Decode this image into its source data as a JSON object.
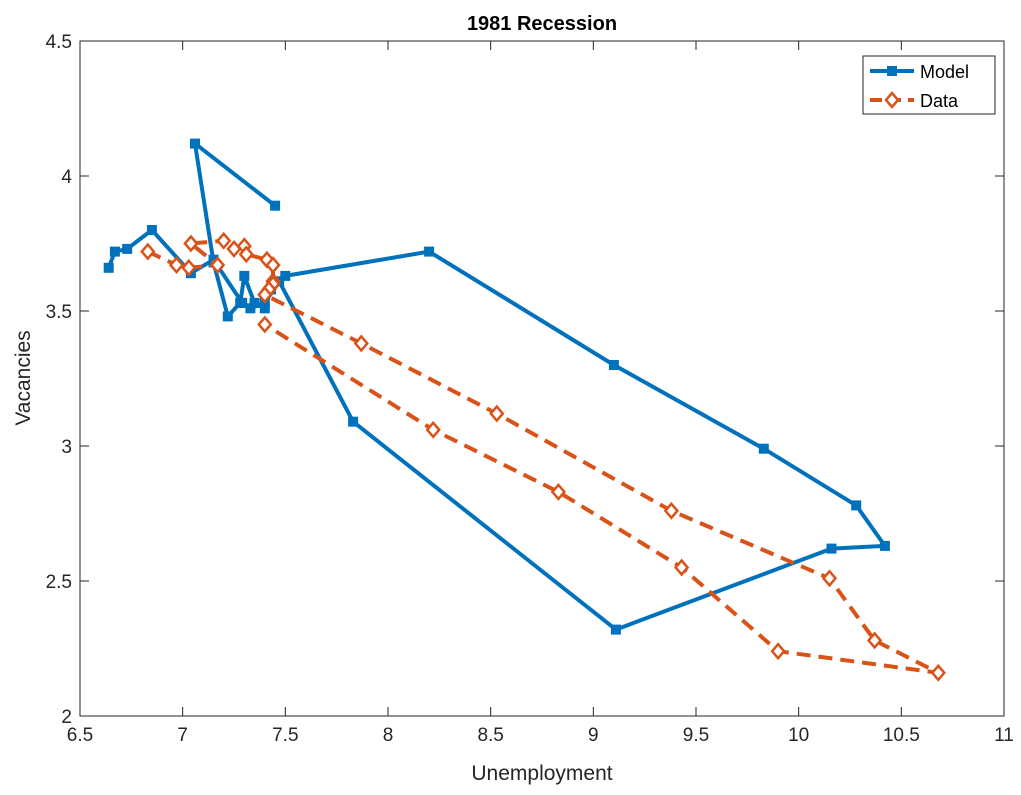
{
  "chart_data": {
    "type": "line",
    "title": "1981 Recession",
    "xlabel": "Unemployment",
    "ylabel": "Vacancies",
    "xlim": [
      6.5,
      11
    ],
    "ylim": [
      2,
      4.5
    ],
    "xticks": [
      6.5,
      7,
      7.5,
      8,
      8.5,
      9,
      9.5,
      10,
      10.5,
      11
    ],
    "yticks": [
      2,
      2.5,
      3,
      3.5,
      4,
      4.5
    ],
    "xtick_labels": [
      "6.5",
      "7",
      "7.5",
      "8",
      "8.5",
      "9",
      "9.5",
      "10",
      "10.5",
      "11"
    ],
    "ytick_labels": [
      "2",
      "2.5",
      "3",
      "3.5",
      "4",
      "4.5"
    ],
    "grid": false,
    "legend_position": "top-right",
    "series": [
      {
        "name": "Model",
        "color": "#0072BD",
        "line_style": "solid",
        "marker": "square",
        "points": [
          [
            7.45,
            3.89
          ],
          [
            7.06,
            4.12
          ],
          [
            7.15,
            3.68
          ],
          [
            7.22,
            3.48
          ],
          [
            7.28,
            3.53
          ],
          [
            7.3,
            3.63
          ],
          [
            7.35,
            3.53
          ],
          [
            7.4,
            3.51
          ],
          [
            7.43,
            3.58
          ],
          [
            7.5,
            3.63
          ],
          [
            8.2,
            3.72
          ],
          [
            9.1,
            3.3
          ],
          [
            9.83,
            2.99
          ],
          [
            10.28,
            2.78
          ],
          [
            10.42,
            2.63
          ],
          [
            10.16,
            2.62
          ],
          [
            9.11,
            2.32
          ],
          [
            7.83,
            3.09
          ],
          [
            7.47,
            3.61
          ],
          [
            7.4,
            3.53
          ],
          [
            7.33,
            3.51
          ],
          [
            7.29,
            3.53
          ],
          [
            7.15,
            3.69
          ],
          [
            7.04,
            3.64
          ],
          [
            6.85,
            3.8
          ],
          [
            6.73,
            3.73
          ],
          [
            6.67,
            3.72
          ],
          [
            6.64,
            3.66
          ]
        ]
      },
      {
        "name": "Data",
        "color": "#D95319",
        "line_style": "dashed",
        "marker": "diamond",
        "points": [
          [
            6.83,
            3.72
          ],
          [
            6.97,
            3.67
          ],
          [
            7.03,
            3.66
          ],
          [
            7.17,
            3.67
          ],
          [
            7.04,
            3.75
          ],
          [
            7.2,
            3.76
          ],
          [
            7.25,
            3.73
          ],
          [
            7.3,
            3.74
          ],
          [
            7.31,
            3.71
          ],
          [
            7.41,
            3.69
          ],
          [
            7.44,
            3.67
          ],
          [
            7.44,
            3.61
          ],
          [
            7.44,
            3.6
          ],
          [
            7.42,
            3.58
          ],
          [
            7.4,
            3.56
          ],
          [
            7.87,
            3.38
          ],
          [
            8.53,
            3.12
          ],
          [
            9.38,
            2.76
          ],
          [
            10.15,
            2.51
          ],
          [
            10.37,
            2.28
          ],
          [
            10.68,
            2.16
          ],
          [
            9.9,
            2.24
          ],
          [
            9.43,
            2.55
          ],
          [
            8.83,
            2.83
          ],
          [
            8.22,
            3.06
          ],
          [
            7.4,
            3.45
          ]
        ]
      }
    ]
  }
}
